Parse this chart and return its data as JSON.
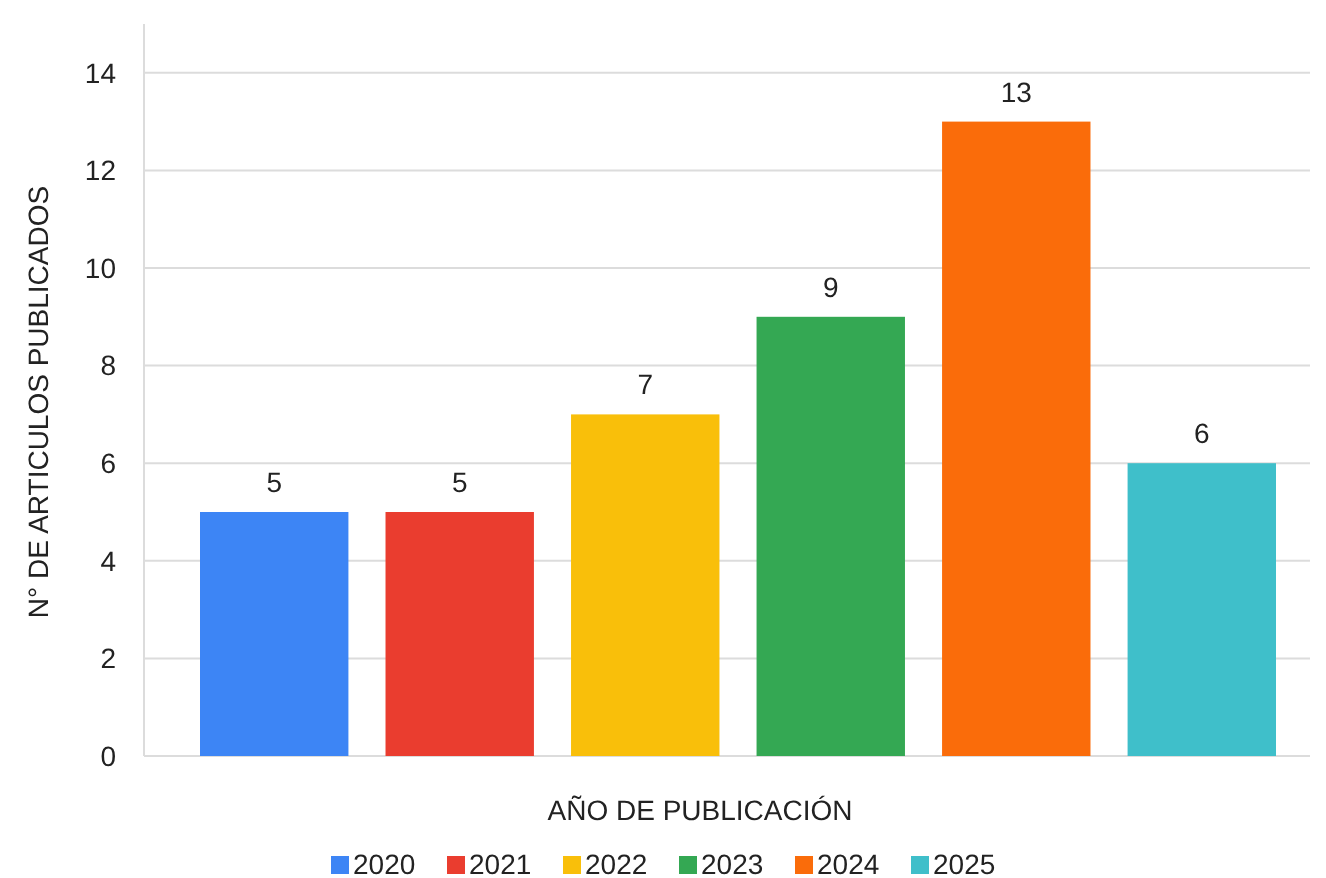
{
  "chart_data": {
    "type": "bar",
    "xlabel": "AÑO DE PUBLICACIÓN",
    "ylabel": "N° DE ARTICULOS PUBLICADOS",
    "categories": [
      null,
      null,
      null,
      null,
      null,
      null
    ],
    "series": [
      {
        "name": "2020",
        "color": "#3d85f5",
        "values": [
          5,
          null,
          null,
          null,
          null,
          null
        ]
      },
      {
        "name": "2021",
        "color": "#ea3d2f",
        "values": [
          null,
          5,
          null,
          null,
          null,
          null
        ]
      },
      {
        "name": "2022",
        "color": "#f9bf0a",
        "values": [
          null,
          null,
          7,
          null,
          null,
          null
        ]
      },
      {
        "name": "2023",
        "color": "#34a853",
        "values": [
          null,
          null,
          null,
          9,
          null,
          null
        ]
      },
      {
        "name": "2024",
        "color": "#fa6c0a",
        "values": [
          null,
          null,
          null,
          null,
          13,
          null
        ]
      },
      {
        "name": "2025",
        "color": "#3fbfca",
        "values": [
          null,
          null,
          null,
          null,
          null,
          6
        ]
      }
    ],
    "ylim": [
      0,
      15
    ],
    "yticks": [
      0,
      2,
      4,
      6,
      8,
      10,
      12,
      14
    ],
    "grid": "y",
    "legend": "bottom",
    "data_labels": true
  }
}
